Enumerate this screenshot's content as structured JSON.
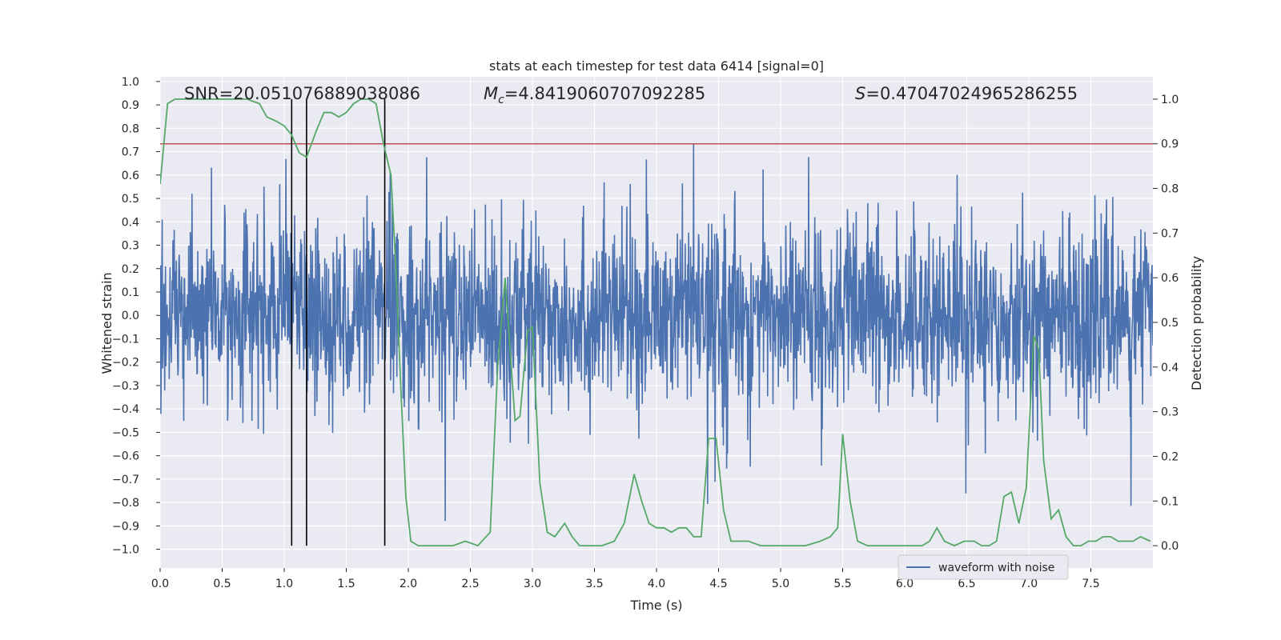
{
  "chart_data": {
    "type": "line",
    "title": "stats at each timestep for test data 6414 [signal=0]",
    "xlabel": "Time (s)",
    "ylabel_left": "Whitened strain",
    "ylabel_right": "Detection probability",
    "xlim": [
      0.0,
      8.0
    ],
    "ylim_left": [
      -1.08,
      1.02
    ],
    "ylim_right": [
      -0.05,
      1.05
    ],
    "x_ticks": [
      0.0,
      0.5,
      1.0,
      1.5,
      2.0,
      2.5,
      3.0,
      3.5,
      4.0,
      4.5,
      5.0,
      5.5,
      6.0,
      6.5,
      7.0,
      7.5
    ],
    "x_tick_labels": [
      "0.0",
      "0.5",
      "1.0",
      "1.5",
      "2.0",
      "2.5",
      "3.0",
      "3.5",
      "4.0",
      "4.5",
      "5.0",
      "5.5",
      "6.0",
      "6.5",
      "7.0",
      "7.5"
    ],
    "y_left_ticks": [
      -1.0,
      -0.9,
      -0.8,
      -0.7,
      -0.6,
      -0.5,
      -0.4,
      -0.3,
      -0.2,
      -0.1,
      0.0,
      0.1,
      0.2,
      0.3,
      0.4,
      0.5,
      0.6,
      0.7,
      0.8,
      0.9,
      1.0
    ],
    "y_left_tick_labels": [
      "−1.0",
      "−0.9",
      "−0.8",
      "−0.7",
      "−0.6",
      "−0.5",
      "−0.4",
      "−0.3",
      "−0.2",
      "−0.1",
      "0.0",
      "0.1",
      "0.2",
      "0.3",
      "0.4",
      "0.5",
      "0.6",
      "0.7",
      "0.8",
      "0.9",
      "1.0"
    ],
    "y_right_ticks": [
      0.0,
      0.1,
      0.2,
      0.3,
      0.4,
      0.5,
      0.6,
      0.7,
      0.8,
      0.9,
      1.0
    ],
    "y_right_tick_labels": [
      "0.0",
      "0.1",
      "0.2",
      "0.3",
      "0.4",
      "0.5",
      "0.6",
      "0.7",
      "0.8",
      "0.9",
      "1.0"
    ],
    "annotations": {
      "snr": "SNR=20.051076889038086",
      "mc_symbol": "M",
      "mc_sub": "c",
      "mc_value": "=4.8419060707092285",
      "s_symbol": "S",
      "s_value": "=0.47047024965286255"
    },
    "threshold": {
      "value": 0.9,
      "axis": "right",
      "color": "#c44e52"
    },
    "vertical_lines": [
      1.06,
      1.18,
      1.81
    ],
    "waveform": {
      "name": "waveform with noise",
      "color": "#4c72b0",
      "amplitude_envelope": 0.45,
      "noise_samples_hint": "dense noise, spikes up to about ±0.93"
    },
    "detection_probability": {
      "color": "#55a868",
      "x": [
        0.0,
        0.06,
        0.12,
        0.2,
        0.3,
        0.4,
        0.5,
        0.6,
        0.7,
        0.8,
        0.86,
        0.94,
        1.0,
        1.06,
        1.12,
        1.18,
        1.26,
        1.32,
        1.38,
        1.44,
        1.5,
        1.56,
        1.62,
        1.68,
        1.74,
        1.8,
        1.86,
        1.9,
        1.94,
        1.98,
        2.02,
        2.08,
        2.16,
        2.26,
        2.36,
        2.46,
        2.56,
        2.66,
        2.72,
        2.78,
        2.82,
        2.86,
        2.9,
        2.96,
        3.0,
        3.06,
        3.12,
        3.18,
        3.26,
        3.32,
        3.38,
        3.46,
        3.56,
        3.66,
        3.74,
        3.82,
        3.88,
        3.94,
        4.0,
        4.06,
        4.12,
        4.18,
        4.24,
        4.3,
        4.36,
        4.42,
        4.48,
        4.54,
        4.6,
        4.66,
        4.74,
        4.84,
        4.94,
        5.06,
        5.2,
        5.32,
        5.4,
        5.46,
        5.5,
        5.56,
        5.62,
        5.7,
        5.86,
        6.0,
        6.14,
        6.2,
        6.26,
        6.32,
        6.4,
        6.48,
        6.56,
        6.62,
        6.68,
        6.74,
        6.8,
        6.86,
        6.92,
        6.98,
        7.04,
        7.08,
        7.12,
        7.18,
        7.24,
        7.3,
        7.36,
        7.42,
        7.48,
        7.54,
        7.6,
        7.66,
        7.72,
        7.78,
        7.84,
        7.9,
        7.98
      ],
      "y": [
        0.81,
        0.99,
        1.0,
        1.0,
        1.0,
        1.0,
        1.0,
        1.0,
        1.0,
        0.99,
        0.96,
        0.95,
        0.94,
        0.92,
        0.88,
        0.87,
        0.93,
        0.97,
        0.97,
        0.96,
        0.97,
        0.99,
        1.0,
        1.0,
        0.99,
        0.9,
        0.83,
        0.62,
        0.35,
        0.11,
        0.01,
        0.0,
        0.0,
        0.0,
        0.0,
        0.01,
        0.0,
        0.03,
        0.4,
        0.6,
        0.44,
        0.28,
        0.29,
        0.48,
        0.49,
        0.14,
        0.03,
        0.02,
        0.05,
        0.02,
        0.0,
        0.0,
        0.0,
        0.01,
        0.05,
        0.16,
        0.1,
        0.05,
        0.04,
        0.04,
        0.03,
        0.04,
        0.04,
        0.02,
        0.02,
        0.24,
        0.24,
        0.08,
        0.01,
        0.01,
        0.01,
        0.0,
        0.0,
        0.0,
        0.0,
        0.01,
        0.02,
        0.04,
        0.25,
        0.1,
        0.01,
        0.0,
        0.0,
        0.0,
        0.0,
        0.01,
        0.04,
        0.01,
        0.0,
        0.01,
        0.01,
        0.0,
        0.0,
        0.01,
        0.11,
        0.12,
        0.05,
        0.13,
        0.47,
        0.44,
        0.19,
        0.06,
        0.08,
        0.02,
        0.0,
        0.0,
        0.01,
        0.01,
        0.02,
        0.02,
        0.01,
        0.01,
        0.01,
        0.02,
        0.01
      ]
    },
    "legend": {
      "placement": "lower-right",
      "entries": [
        "waveform with noise"
      ]
    }
  }
}
